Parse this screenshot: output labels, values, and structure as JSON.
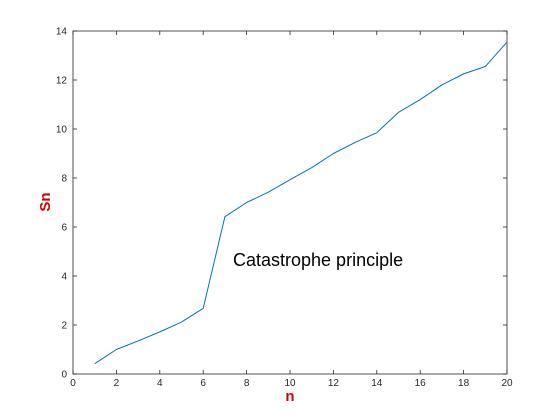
{
  "chart_data": {
    "type": "line",
    "title": "",
    "xlabel": "n",
    "ylabel": "Sn",
    "xlim": [
      0,
      20
    ],
    "ylim": [
      0,
      14
    ],
    "xticks": [
      0,
      2,
      4,
      6,
      8,
      10,
      12,
      14,
      16,
      18,
      20
    ],
    "yticks": [
      0,
      2,
      4,
      6,
      8,
      10,
      12,
      14
    ],
    "grid": false,
    "colors": {
      "line": "#0072BD",
      "axis_label": "#D40000",
      "axes": "#262626"
    },
    "annotation": "Catastrophe principle",
    "series": [
      {
        "x": [
          1,
          2,
          3,
          4,
          5,
          6,
          7,
          8,
          9,
          10,
          11,
          12,
          13,
          14,
          15,
          16,
          17,
          18,
          19,
          20
        ],
        "y": [
          0.42,
          1.0,
          1.35,
          1.72,
          2.12,
          2.68,
          6.42,
          7.0,
          7.42,
          7.93,
          8.42,
          9.0,
          9.45,
          9.85,
          10.68,
          11.2,
          11.8,
          12.25,
          12.55,
          13.55
        ]
      }
    ]
  }
}
